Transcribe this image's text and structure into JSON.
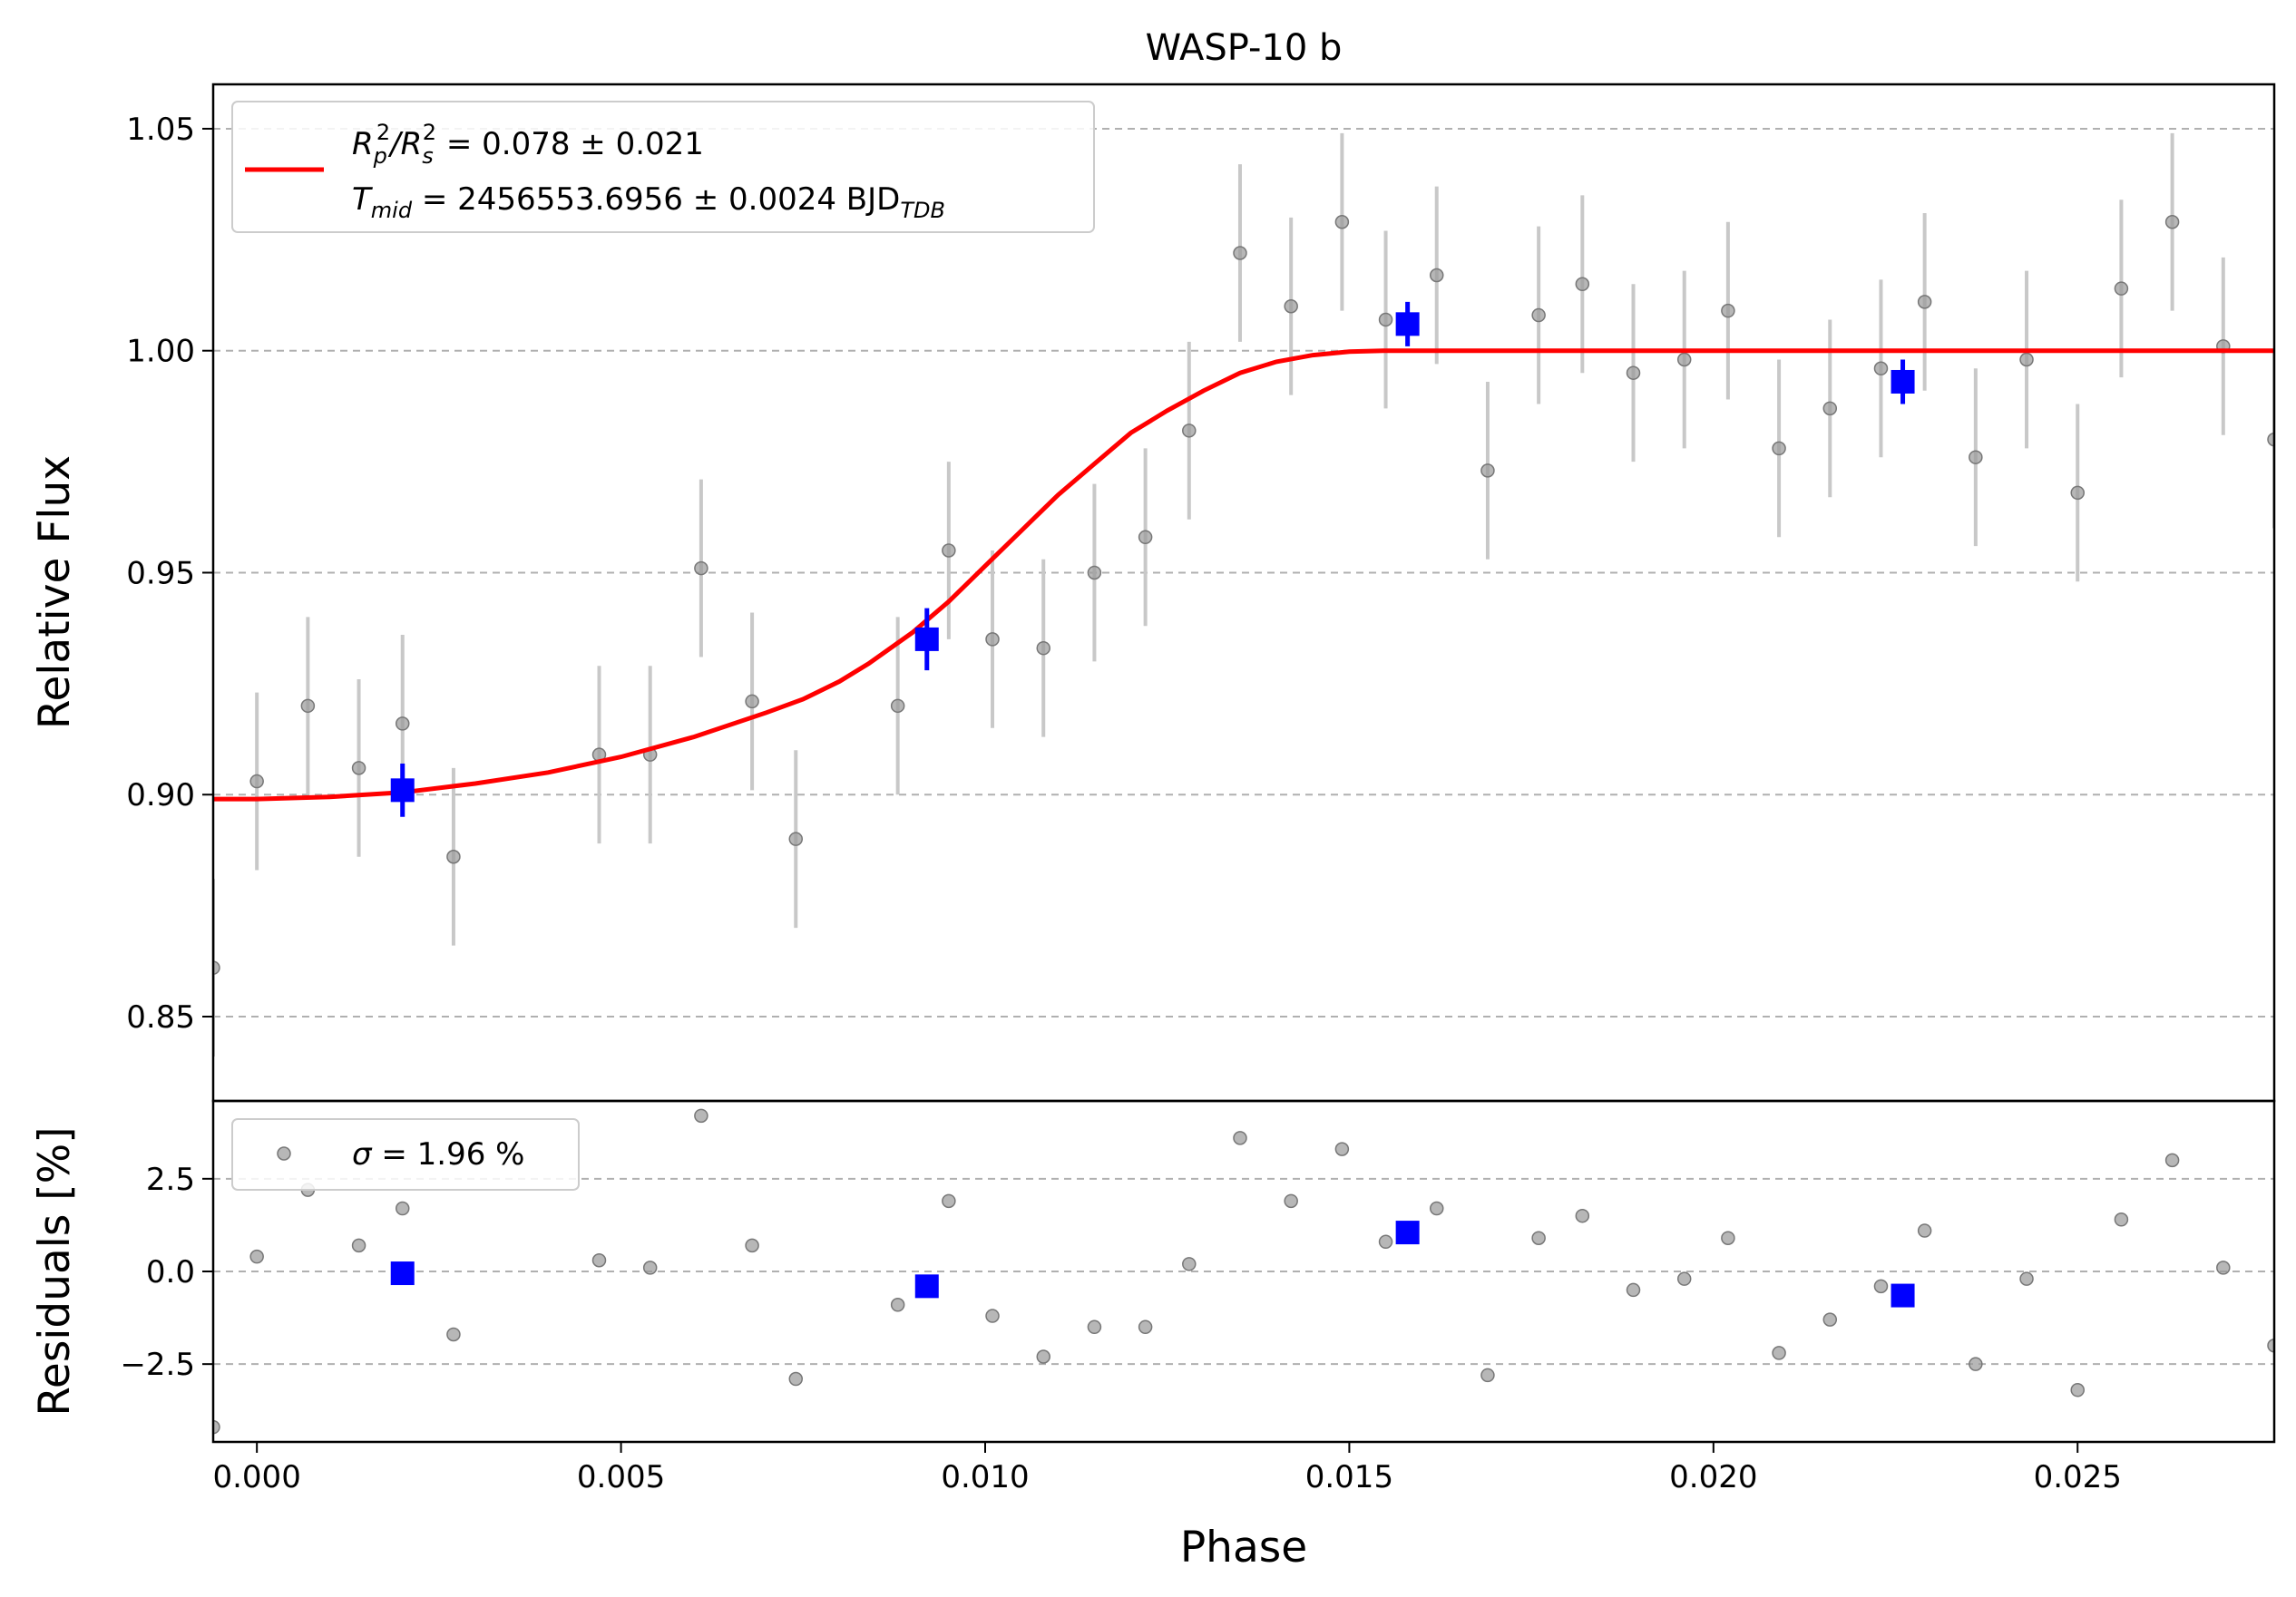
{
  "chart_data": {
    "type": "scatter",
    "title": "WASP-10 b",
    "xlabel": "Phase",
    "xlim": [
      -0.0006,
      0.0277
    ],
    "xticks": [
      "0.000",
      "0.005",
      "0.010",
      "0.015",
      "0.020",
      "0.025"
    ],
    "xtick_values": [
      0.0,
      0.005,
      0.01,
      0.015,
      0.02,
      0.025
    ],
    "grid": "horizontal dashed",
    "colors": {
      "data": "#808080",
      "errorbar": "#c8c8c8",
      "binned": "#0000ff",
      "model": "#ff0000"
    },
    "top_panel": {
      "ylabel": "Relative Flux",
      "ylim": [
        0.831,
        1.06
      ],
      "yticks": [
        "0.85",
        "0.90",
        "0.95",
        "1.00",
        "1.05"
      ],
      "ytick_values": [
        0.85,
        0.9,
        0.95,
        1.0,
        1.05
      ],
      "legend": {
        "placement": "top-left",
        "line1": {
          "pre": "R",
          "sub1": "p",
          "sup1": "2",
          "mid": "/R",
          "sub2": "s",
          "sup2": "2",
          "post": " = 0.078 ± 0.021"
        },
        "line2": {
          "pre": "T",
          "sub1": "mid",
          "mid": " = 2456553.6956 ± 0.0024 BJD",
          "sub2": "TDB"
        }
      },
      "data_x": [
        -0.0006,
        0.0,
        0.0007,
        0.0014,
        0.002,
        0.0027,
        0.0047,
        0.0054,
        0.0061,
        0.0068,
        0.0074,
        0.0088,
        0.0095,
        0.0101,
        0.0108,
        0.0115,
        0.0122,
        0.0128,
        0.0135,
        0.0142,
        0.0149,
        0.0155,
        0.0162,
        0.0169,
        0.0176,
        0.0182,
        0.0189,
        0.0196,
        0.0202,
        0.0209,
        0.0216,
        0.0223,
        0.0229,
        0.0236,
        0.0243,
        0.025,
        0.0256,
        0.0263,
        0.027,
        0.0277
      ],
      "data_y": [
        0.861,
        0.903,
        0.92,
        0.906,
        0.916,
        0.886,
        0.909,
        0.909,
        0.951,
        0.921,
        0.89,
        0.92,
        0.955,
        0.935,
        0.933,
        0.95,
        0.958,
        0.982,
        1.022,
        1.01,
        1.029,
        1.007,
        1.017,
        0.973,
        1.008,
        1.015,
        0.995,
        0.998,
        1.009,
        0.978,
        0.987,
        0.996,
        1.011,
        0.976,
        0.998,
        0.968,
        1.014,
        1.029,
        1.001,
        0.98
      ],
      "error": 0.02,
      "binned_x": [
        0.002,
        0.0092,
        0.0158,
        0.0226
      ],
      "binned_y": [
        0.901,
        0.935,
        1.006,
        0.993
      ],
      "binned_err": [
        0.006,
        0.007,
        0.005,
        0.005
      ],
      "model_x": [
        -0.0006,
        0.0,
        0.001,
        0.002,
        0.003,
        0.004,
        0.005,
        0.006,
        0.007,
        0.0075,
        0.008,
        0.0084,
        0.009,
        0.0095,
        0.01,
        0.0105,
        0.011,
        0.0115,
        0.012,
        0.0125,
        0.013,
        0.0135,
        0.014,
        0.0145,
        0.015,
        0.0155,
        0.0158,
        0.016,
        0.017,
        0.02,
        0.0277
      ],
      "model_y": [
        0.899,
        0.899,
        0.8995,
        0.9005,
        0.9025,
        0.905,
        0.9085,
        0.913,
        0.9185,
        0.9215,
        0.9255,
        0.9295,
        0.9365,
        0.9435,
        0.9515,
        0.9595,
        0.9675,
        0.9745,
        0.9815,
        0.9865,
        0.991,
        0.995,
        0.9975,
        0.999,
        0.9998,
        1.0,
        1.0,
        1.0,
        1.0,
        1.0,
        1.0
      ]
    },
    "bottom_panel": {
      "ylabel": "Residuals [%]",
      "ylim": [
        -4.6,
        4.6
      ],
      "yticks": [
        "2.5",
        "0.0",
        "−2.5"
      ],
      "ytick_values": [
        2.5,
        0.0,
        -2.5
      ],
      "legend": {
        "placement": "top-left",
        "pre": "σ",
        "post": " = 1.96 %"
      },
      "data_x": [
        -0.0006,
        0.0,
        0.0007,
        0.0014,
        0.002,
        0.0027,
        0.0047,
        0.0054,
        0.0061,
        0.0068,
        0.0074,
        0.0088,
        0.0095,
        0.0101,
        0.0108,
        0.0115,
        0.0122,
        0.0128,
        0.0135,
        0.0142,
        0.0149,
        0.0155,
        0.0162,
        0.0169,
        0.0176,
        0.0182,
        0.0189,
        0.0196,
        0.0202,
        0.0209,
        0.0216,
        0.0223,
        0.0229,
        0.0236,
        0.0243,
        0.025,
        0.0256,
        0.0263,
        0.027,
        0.0277
      ],
      "data_y": [
        -4.2,
        0.4,
        2.2,
        0.7,
        1.7,
        -1.7,
        0.3,
        0.1,
        4.2,
        0.7,
        -2.9,
        -0.9,
        1.9,
        -1.2,
        -2.3,
        -1.5,
        -1.5,
        0.2,
        3.6,
        1.9,
        3.3,
        0.8,
        1.7,
        -2.8,
        0.9,
        1.5,
        -0.5,
        -0.2,
        0.9,
        -2.2,
        -1.3,
        -0.4,
        1.1,
        -2.5,
        -0.2,
        -3.2,
        1.4,
        3.0,
        0.1,
        -2.0
      ],
      "binned_x": [
        0.002,
        0.0092,
        0.0158,
        0.0226
      ],
      "binned_y": [
        -0.05,
        -0.4,
        1.05,
        -0.65
      ]
    }
  }
}
